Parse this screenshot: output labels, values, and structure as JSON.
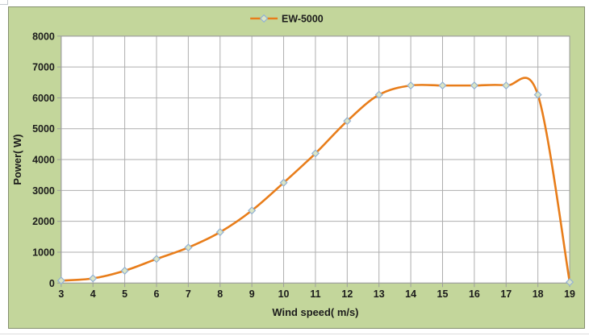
{
  "chart": {
    "colors": {
      "page_bg": "#ffffff",
      "panel_bg": "#c3d69b",
      "panel_border": "#85906e",
      "plot_bg": "#ffffff",
      "gridline": "#aeaeae",
      "plot_border": "#9c9c9c",
      "axis_tick": "#9c9c9c",
      "line": "#e87d1a",
      "marker_fill": "#dbe5c4",
      "marker_stroke": "#92b1d4",
      "text": "#1c1c1c"
    },
    "legend": {
      "label": "EW-5000"
    }
  },
  "chart_data": {
    "type": "line",
    "title": "",
    "xlabel": "Wind speed( m/s)",
    "ylabel": "Power( W)",
    "x": [
      3,
      4,
      5,
      6,
      7,
      8,
      9,
      10,
      11,
      12,
      13,
      14,
      15,
      16,
      17,
      18,
      19
    ],
    "series": [
      {
        "name": "EW-5000",
        "values": [
          80,
          150,
          400,
          780,
          1150,
          1650,
          2350,
          3250,
          4200,
          5250,
          6100,
          6400,
          6400,
          6400,
          6400,
          6100,
          30
        ]
      }
    ],
    "xlim": [
      3,
      19
    ],
    "ylim": [
      0,
      8000
    ],
    "xticks": [
      3,
      4,
      5,
      6,
      7,
      8,
      9,
      10,
      11,
      12,
      13,
      14,
      15,
      16,
      17,
      18,
      19
    ],
    "yticks": [
      0,
      1000,
      2000,
      3000,
      4000,
      5000,
      6000,
      7000,
      8000
    ],
    "grid": true,
    "smooth": true,
    "marker": "diamond",
    "legend_position": "top-center"
  }
}
